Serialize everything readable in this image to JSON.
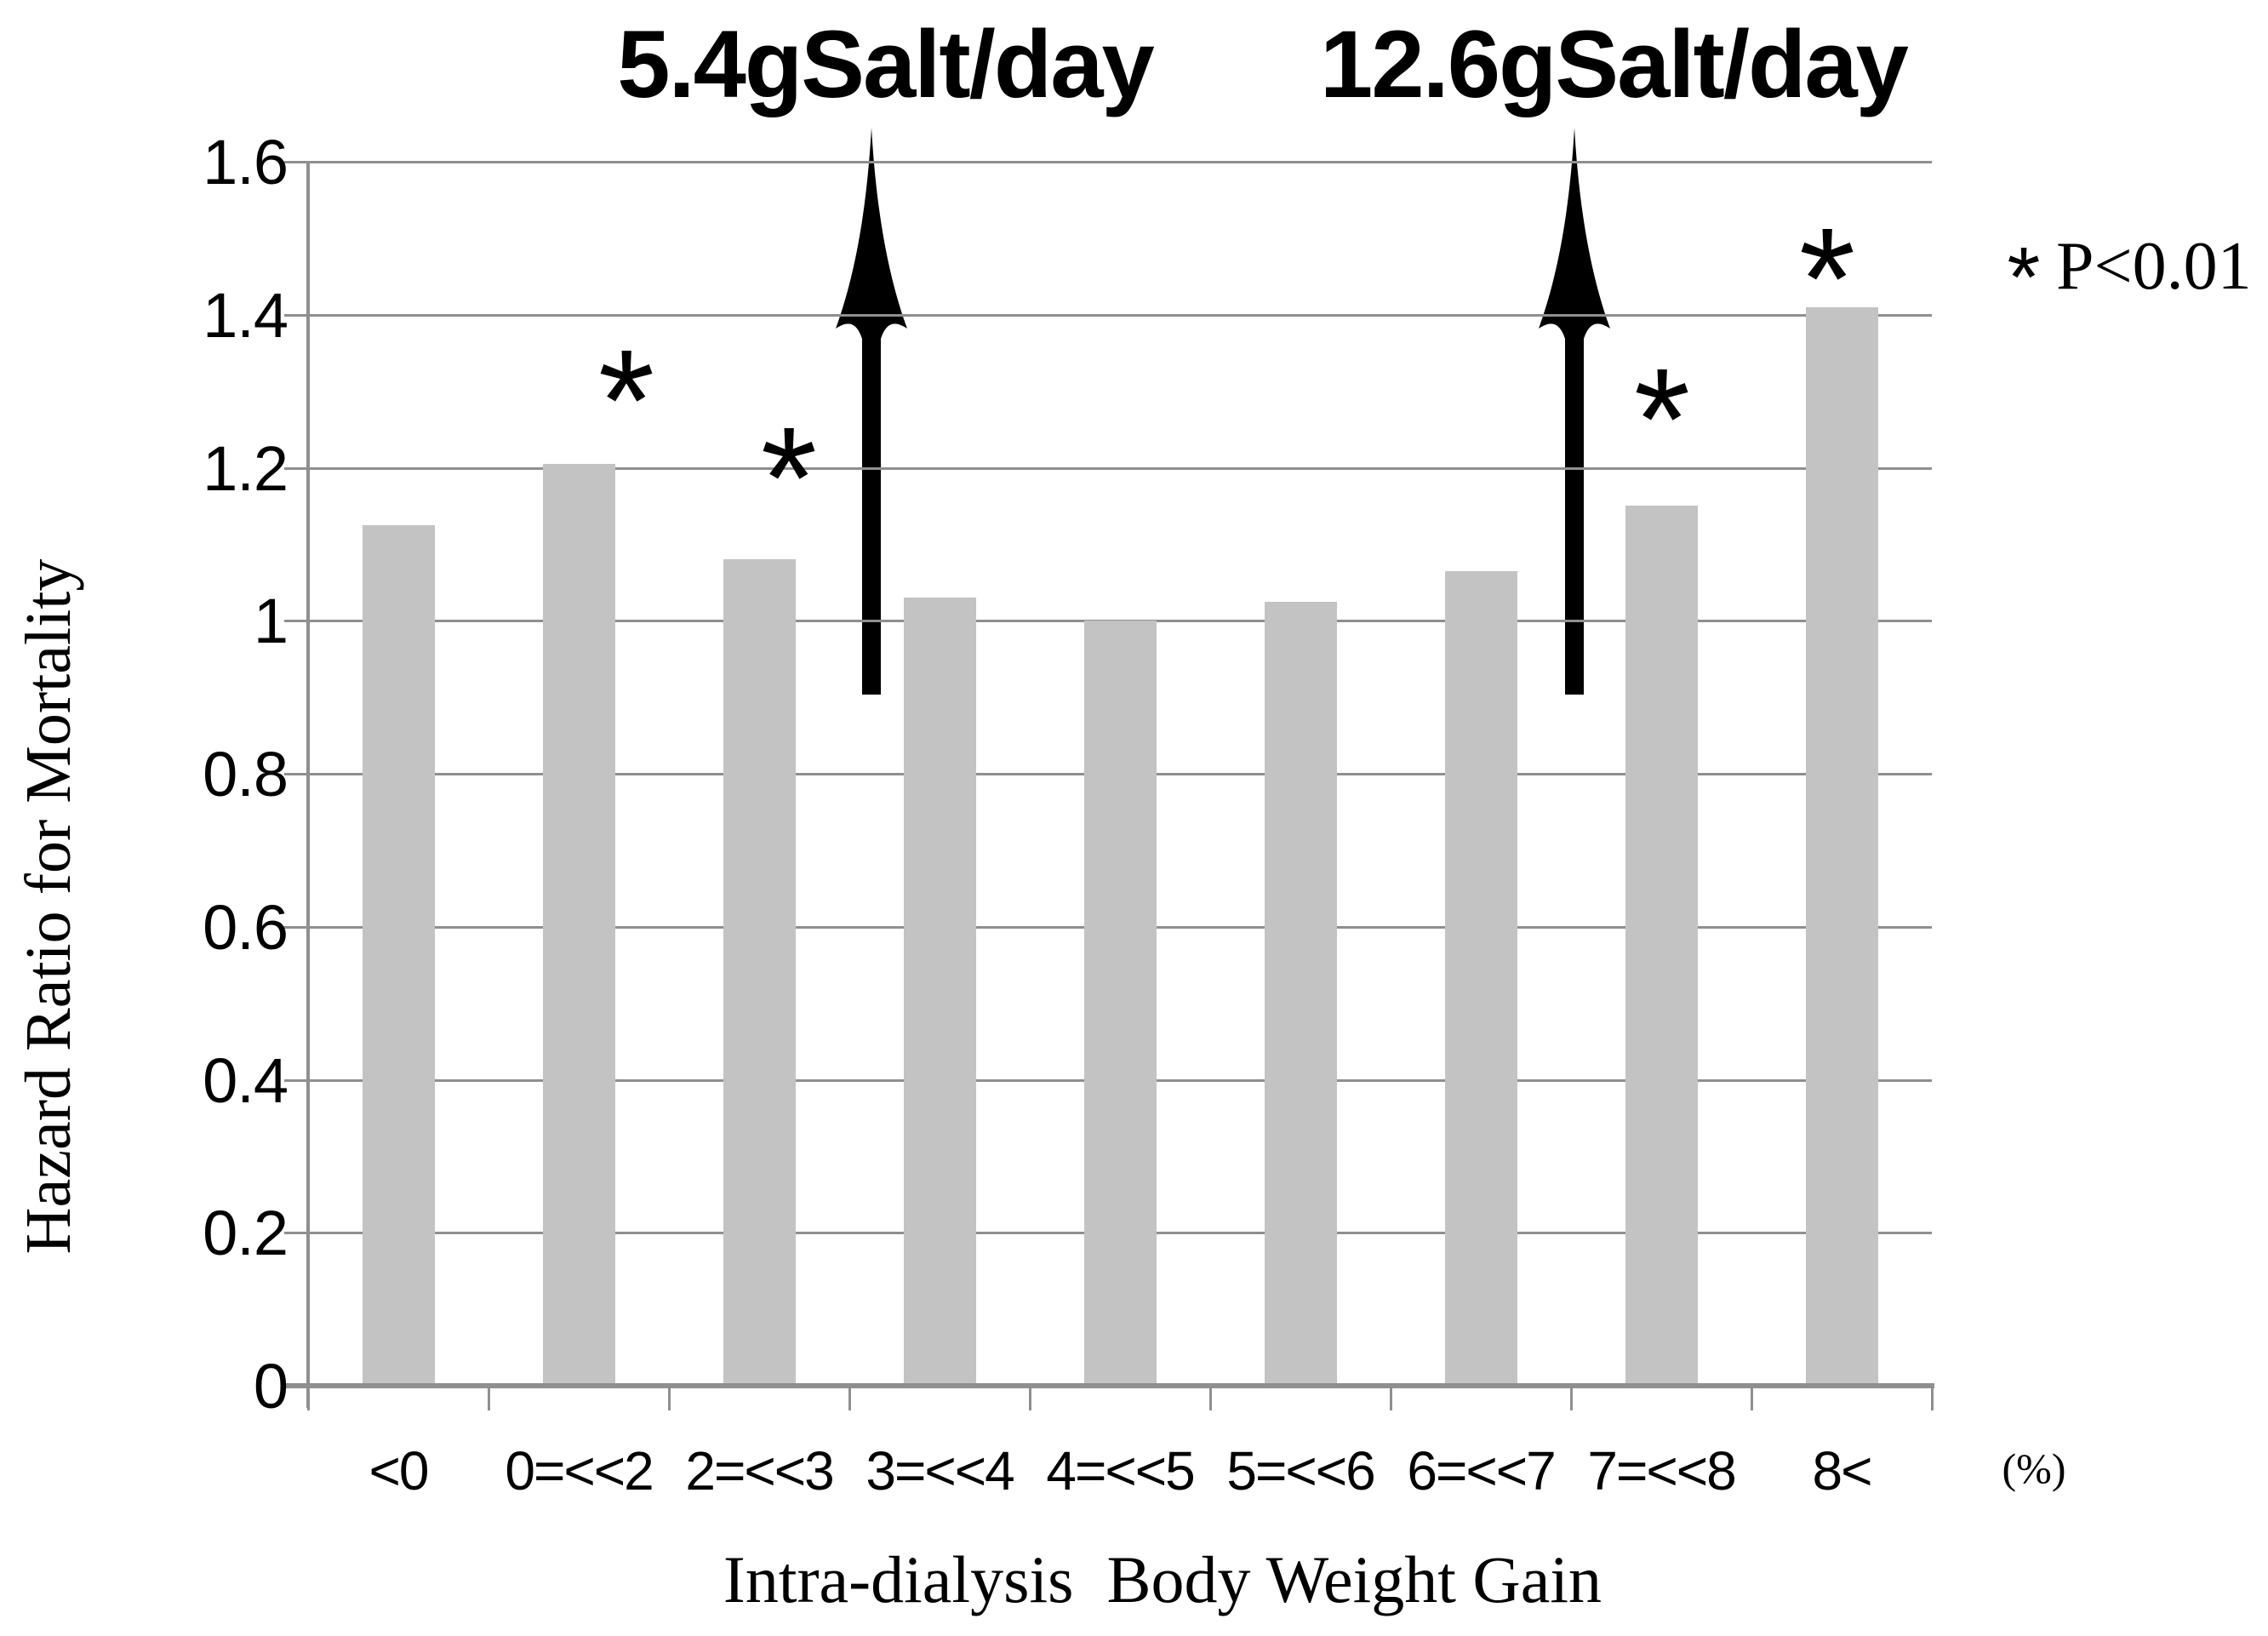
{
  "chart_data": {
    "type": "bar",
    "categories": [
      "<0",
      "0=<<2",
      "2=<<3",
      "3=<<4",
      "4=<<5",
      "5=<<6",
      "6=<<7",
      "7=<<8",
      "8<"
    ],
    "values": [
      1.125,
      1.205,
      1.08,
      1.03,
      1.0,
      1.025,
      1.065,
      1.15,
      1.41
    ],
    "significant_bar_indices": [
      1,
      2,
      7,
      8
    ],
    "significance_symbol": "*",
    "annotations": [
      {
        "text": "5.4gSalt/day",
        "arrow_position": "between categories 2=<<3 and 3=<<4"
      },
      {
        "text": "12.6gSalt/day",
        "arrow_position": "between categories 6=<<7 and 7=<<8"
      }
    ],
    "xlabel": "Intra-dialysis  Body Weight Gain",
    "x_unit_label": "(%)",
    "ylabel": "Hazard Ratio for Mortality",
    "ytick_labels": [
      "1.6",
      "1.4",
      "1.2",
      "1",
      "0.8",
      "0.6",
      "0.4",
      "0.2",
      "0"
    ],
    "ytick_values": [
      1.6,
      1.4,
      1.2,
      1.0,
      0.8,
      0.6,
      0.4,
      0.2,
      0
    ],
    "ylim": [
      0,
      1.6
    ],
    "legend_text": "P<0.01",
    "grid": true,
    "legend_position": "right",
    "bar_color": "#c3c3c3",
    "gridline_color": "#8f8f8f",
    "arrow_color": "#000000"
  }
}
